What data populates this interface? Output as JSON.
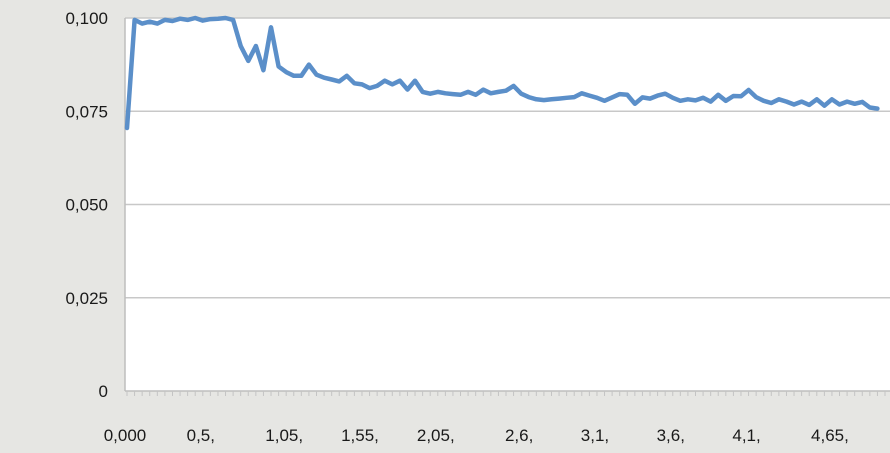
{
  "chart_data": {
    "type": "line",
    "title": "",
    "xlabel": "",
    "ylabel": "",
    "ylim": [
      0,
      0.1
    ],
    "grid": true,
    "legend": "none",
    "line_color": "#5b8fc9",
    "y_ticks": [
      {
        "value": 0,
        "label": "0"
      },
      {
        "value": 0.025,
        "label": "0,025"
      },
      {
        "value": 0.05,
        "label": "0,050"
      },
      {
        "value": 0.075,
        "label": "0,075"
      },
      {
        "value": 0.1,
        "label": "0,100"
      }
    ],
    "x_ticks": [
      {
        "value": 0.0,
        "label": "0,000"
      },
      {
        "value": 0.5,
        "label": "0,5,"
      },
      {
        "value": 1.05,
        "label": "1,05,"
      },
      {
        "value": 1.55,
        "label": "1,55,"
      },
      {
        "value": 2.05,
        "label": "2,05,"
      },
      {
        "value": 2.6,
        "label": "2,6,"
      },
      {
        "value": 3.1,
        "label": "3,1,"
      },
      {
        "value": 3.6,
        "label": "3,6,"
      },
      {
        "value": 4.1,
        "label": "4,1,"
      },
      {
        "value": 4.65,
        "label": "4,65,"
      }
    ],
    "xlim": [
      0,
      5.25
    ],
    "series": [
      {
        "points": [
          [
            0.0,
            0.0705
          ],
          [
            0.05,
            0.0995
          ],
          [
            0.1,
            0.0985
          ],
          [
            0.15,
            0.099
          ],
          [
            0.2,
            0.0985
          ],
          [
            0.25,
            0.0995
          ],
          [
            0.3,
            0.0992
          ],
          [
            0.35,
            0.0998
          ],
          [
            0.4,
            0.0995
          ],
          [
            0.45,
            0.1
          ],
          [
            0.5,
            0.0993
          ],
          [
            0.55,
            0.0997
          ],
          [
            0.6,
            0.0998
          ],
          [
            0.65,
            0.1
          ],
          [
            0.7,
            0.0995
          ],
          [
            0.75,
            0.0925
          ],
          [
            0.8,
            0.0885
          ],
          [
            0.85,
            0.0925
          ],
          [
            0.9,
            0.086
          ],
          [
            0.95,
            0.0975
          ],
          [
            1.0,
            0.087
          ],
          [
            1.05,
            0.0855
          ],
          [
            1.1,
            0.0845
          ],
          [
            1.15,
            0.0845
          ],
          [
            1.2,
            0.0875
          ],
          [
            1.25,
            0.0848
          ],
          [
            1.3,
            0.084
          ],
          [
            1.35,
            0.0835
          ],
          [
            1.4,
            0.083
          ],
          [
            1.45,
            0.0845
          ],
          [
            1.5,
            0.0825
          ],
          [
            1.55,
            0.0822
          ],
          [
            1.6,
            0.0812
          ],
          [
            1.65,
            0.0818
          ],
          [
            1.7,
            0.0832
          ],
          [
            1.75,
            0.0822
          ],
          [
            1.8,
            0.0832
          ],
          [
            1.85,
            0.0808
          ],
          [
            1.9,
            0.0832
          ],
          [
            1.95,
            0.0802
          ],
          [
            2.0,
            0.0797
          ],
          [
            2.05,
            0.0802
          ],
          [
            2.1,
            0.0798
          ],
          [
            2.15,
            0.0796
          ],
          [
            2.2,
            0.0794
          ],
          [
            2.25,
            0.0802
          ],
          [
            2.3,
            0.0794
          ],
          [
            2.35,
            0.0808
          ],
          [
            2.4,
            0.0798
          ],
          [
            2.45,
            0.0802
          ],
          [
            2.5,
            0.0805
          ],
          [
            2.55,
            0.0818
          ],
          [
            2.6,
            0.0797
          ],
          [
            2.65,
            0.0788
          ],
          [
            2.7,
            0.0782
          ],
          [
            2.75,
            0.078
          ],
          [
            2.8,
            0.0782
          ],
          [
            2.85,
            0.0784
          ],
          [
            2.9,
            0.0786
          ],
          [
            2.95,
            0.0788
          ],
          [
            3.0,
            0.0798
          ],
          [
            3.05,
            0.0792
          ],
          [
            3.1,
            0.0786
          ],
          [
            3.15,
            0.0778
          ],
          [
            3.2,
            0.0787
          ],
          [
            3.25,
            0.0796
          ],
          [
            3.3,
            0.0794
          ],
          [
            3.35,
            0.077
          ],
          [
            3.4,
            0.0787
          ],
          [
            3.45,
            0.0784
          ],
          [
            3.5,
            0.0792
          ],
          [
            3.55,
            0.0797
          ],
          [
            3.6,
            0.0786
          ],
          [
            3.65,
            0.0778
          ],
          [
            3.7,
            0.0782
          ],
          [
            3.75,
            0.0779
          ],
          [
            3.8,
            0.0786
          ],
          [
            3.85,
            0.0776
          ],
          [
            3.9,
            0.0794
          ],
          [
            3.95,
            0.0778
          ],
          [
            4.0,
            0.0791
          ],
          [
            4.05,
            0.079
          ],
          [
            4.1,
            0.0807
          ],
          [
            4.15,
            0.0788
          ],
          [
            4.2,
            0.0778
          ],
          [
            4.25,
            0.0772
          ],
          [
            4.3,
            0.0782
          ],
          [
            4.35,
            0.0776
          ],
          [
            4.4,
            0.0768
          ],
          [
            4.45,
            0.0776
          ],
          [
            4.5,
            0.0767
          ],
          [
            4.55,
            0.0782
          ],
          [
            4.6,
            0.0765
          ],
          [
            4.65,
            0.0782
          ],
          [
            4.7,
            0.0768
          ],
          [
            4.75,
            0.0776
          ],
          [
            4.8,
            0.077
          ],
          [
            4.85,
            0.0775
          ],
          [
            4.9,
            0.076
          ],
          [
            4.95,
            0.0757
          ]
        ]
      }
    ]
  }
}
